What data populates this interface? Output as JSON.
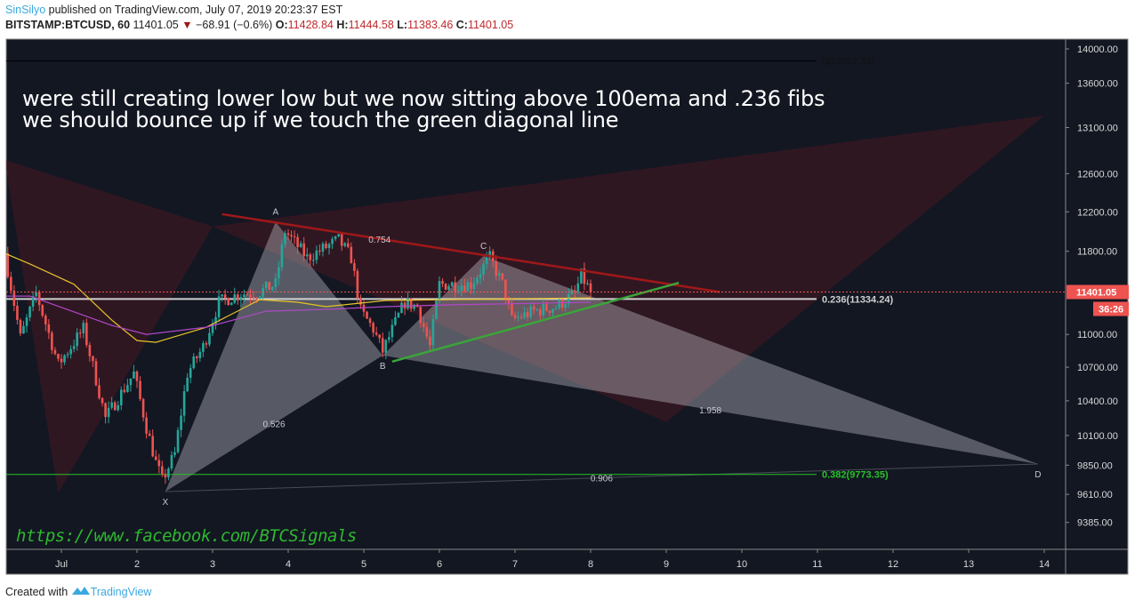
{
  "header": {
    "author": "SinSilyo",
    "published": "published on TradingView.com, July 07, 2019 20:23:37 EST",
    "symbol": "BITSTAMP:BTCUSD, 60",
    "last": "11401.05",
    "change_icon": "triangle-down-icon",
    "change": "−68.91 (−0.6%)",
    "o_label": "O:",
    "o": "11428.84",
    "h_label": "H:",
    "h": "11444.58",
    "l_label": "L:",
    "l": "11383.46",
    "c_label": "C:",
    "c": "11401.05"
  },
  "annotation": {
    "line1": "were still creating lower low but we now sitting above 100ema and .236 fibs",
    "line2": "we should bounce up if we touch the green diagonal line",
    "link": "https://www.facebook.com/BTCSignals"
  },
  "footer": {
    "created_with": "Created with",
    "brand": "TradingView",
    "logo_icon": "tradingview-logo-icon"
  },
  "colors": {
    "background": "#131722",
    "up": "#26a69a",
    "down": "#ef5350",
    "ema_yellow": "#e6c229",
    "ema_purple": "#b048c8",
    "fib_green": "#27c227",
    "trend_red": "#a01818",
    "trend_green": "#3aa53a",
    "price_badge": "#ef5350"
  },
  "chart_data": {
    "type": "candlestick",
    "interval": "60",
    "y_scale": "log",
    "ylim": [
      9200,
      14150
    ],
    "y_ticks": [
      "14000.00",
      "13600.00",
      "13100.00",
      "12600.00",
      "12200.00",
      "11800.00",
      "11000.00",
      "10700.00",
      "10400.00",
      "10100.00",
      "9850.00",
      "9610.00",
      "9385.00"
    ],
    "x_ticks": [
      {
        "label": "Jul",
        "date": "2019-07-01"
      },
      {
        "label": "2",
        "date": "2019-07-02"
      },
      {
        "label": "3",
        "date": "2019-07-03"
      },
      {
        "label": "4",
        "date": "2019-07-04"
      },
      {
        "label": "5",
        "date": "2019-07-05"
      },
      {
        "label": "6",
        "date": "2019-07-06"
      },
      {
        "label": "7",
        "date": "2019-07-07"
      },
      {
        "label": "8",
        "date": "2019-07-08"
      },
      {
        "label": "9",
        "date": "2019-07-09"
      },
      {
        "label": "10",
        "date": "2019-07-10"
      },
      {
        "label": "11",
        "date": "2019-07-11"
      },
      {
        "label": "12",
        "date": "2019-07-12"
      },
      {
        "label": "13",
        "date": "2019-07-13"
      },
      {
        "label": "14",
        "date": "2019-07-14"
      }
    ],
    "price_path": [
      [
        "2019-06-30T06:00",
        11780
      ],
      [
        "2019-06-30T11:00",
        10967
      ],
      [
        "2019-06-30T16:00",
        11388
      ],
      [
        "2019-06-30T23:00",
        10724
      ],
      [
        "2019-07-01T07:00",
        11050
      ],
      [
        "2019-07-01T14:00",
        10248
      ],
      [
        "2019-07-01T23:00",
        10643
      ],
      [
        "2019-07-02T03:00",
        10171
      ],
      [
        "2019-07-02T06:00",
        9870
      ],
      [
        "2019-07-02T08:00",
        9723
      ],
      [
        "2019-07-02T12:00",
        9944
      ],
      [
        "2019-07-02T16:00",
        10643
      ],
      [
        "2019-07-02T21:00",
        10885
      ],
      [
        "2019-07-03T02:00",
        11303
      ],
      [
        "2019-07-03T09:00",
        11388
      ],
      [
        "2019-07-03T14:00",
        11388
      ],
      [
        "2019-07-03T20:00",
        11476
      ],
      [
        "2019-07-03T23:00",
        12003
      ],
      [
        "2019-07-04T06:00",
        11735
      ],
      [
        "2019-07-04T16:00",
        11913
      ],
      [
        "2019-07-04T20:00",
        11735
      ],
      [
        "2019-07-04T23:00",
        11218
      ],
      [
        "2019-07-05T03:00",
        11050
      ],
      [
        "2019-07-05T06:00",
        10844
      ],
      [
        "2019-07-05T13:00",
        11303
      ],
      [
        "2019-07-05T17:00",
        11261
      ],
      [
        "2019-07-05T21:00",
        10885
      ],
      [
        "2019-07-06T00:00",
        11476
      ],
      [
        "2019-07-06T10:00",
        11476
      ],
      [
        "2019-07-06T16:00",
        11735
      ],
      [
        "2019-07-06T20:00",
        11476
      ],
      [
        "2019-07-06T23:00",
        11134
      ],
      [
        "2019-07-07T06:00",
        11218
      ],
      [
        "2019-07-07T13:00",
        11261
      ],
      [
        "2019-07-07T19:00",
        11388
      ],
      [
        "2019-07-07T21:00",
        11560
      ],
      [
        "2019-07-08T00:00",
        11401.05
      ]
    ],
    "ema_100": [
      [
        "2019-06-30T06:00",
        11780
      ],
      [
        "2019-06-30T14:00",
        11675
      ],
      [
        "2019-07-01T04:00",
        11476
      ],
      [
        "2019-07-01T16:00",
        11134
      ],
      [
        "2019-07-02T00:00",
        10943
      ],
      [
        "2019-07-02T06:00",
        10927
      ],
      [
        "2019-07-02T22:00",
        11067
      ],
      [
        "2019-07-03T15:00",
        11328
      ],
      [
        "2019-07-04T03:00",
        11303
      ],
      [
        "2019-07-04T12:00",
        11261
      ],
      [
        "2019-07-05T07:00",
        11320
      ],
      [
        "2019-07-06T02:00",
        11328
      ],
      [
        "2019-07-08T00:00",
        11345
      ]
    ],
    "ema_purple": [
      [
        "2019-06-30T06:00",
        11362
      ],
      [
        "2019-06-30T14:00",
        11362
      ],
      [
        "2019-07-01T01:00",
        11244
      ],
      [
        "2019-07-01T16:00",
        11084
      ],
      [
        "2019-07-02T03:00",
        11000
      ],
      [
        "2019-07-02T22:00",
        11067
      ],
      [
        "2019-07-03T17:00",
        11218
      ],
      [
        "2019-07-04T12:00",
        11235
      ],
      [
        "2019-07-05T07:00",
        11261
      ],
      [
        "2019-07-06T02:00",
        11278
      ],
      [
        "2019-07-08T00:00",
        11303
      ]
    ],
    "current_price": "11401.05",
    "countdown": "36:26",
    "fib_levels": [
      {
        "level": "0",
        "price": 13857.33,
        "label": "0(13857.33)",
        "color": "#000000"
      },
      {
        "level": "0.236",
        "price": 11334.24,
        "label": "0.236(11334.24)",
        "color": "#d0d0d0"
      },
      {
        "level": "0.382",
        "price": 9773.35,
        "label": "0.382(9773.35)",
        "color": "#27c227"
      }
    ],
    "harmonic_pattern": {
      "points": [
        {
          "label": "X",
          "date": "2019-07-02T09:00",
          "price": 9632
        },
        {
          "label": "A",
          "date": "2019-07-03T20:00",
          "price": 12096
        },
        {
          "label": "B",
          "date": "2019-07-05T06:00",
          "price": 10806
        },
        {
          "label": "C",
          "date": "2019-07-06T14:00",
          "price": 11753
        },
        {
          "label": "D",
          "date": "2019-07-13T22:00",
          "price": 9860
        }
      ],
      "ratios": [
        {
          "from": "A",
          "to": "C",
          "value": "0.754"
        },
        {
          "from": "X",
          "to": "B",
          "value": "0.526"
        },
        {
          "from": "B",
          "to": "D",
          "value": "1.958"
        },
        {
          "from": "X",
          "to": "D",
          "value": "0.906"
        }
      ]
    },
    "red_pattern": [
      [
        "2019-06-30T06:00",
        12747
      ],
      [
        "2019-06-30T23:00",
        9620
      ],
      [
        "2019-07-03T00:00",
        12050
      ],
      [
        "2019-07-09T00:00",
        10216
      ],
      [
        "2019-07-14T00:00",
        13233
      ]
    ],
    "trendlines": [
      {
        "name": "resistance",
        "color": "#a01818",
        "points": [
          [
            "2019-07-03T03:00",
            12176
          ],
          [
            "2019-07-09T17:00",
            11401
          ]
        ]
      },
      {
        "name": "support",
        "color": "#3aa53a",
        "points": [
          [
            "2019-07-05T09:00",
            10750
          ],
          [
            "2019-07-09T04:00",
            11490
          ]
        ]
      }
    ]
  }
}
